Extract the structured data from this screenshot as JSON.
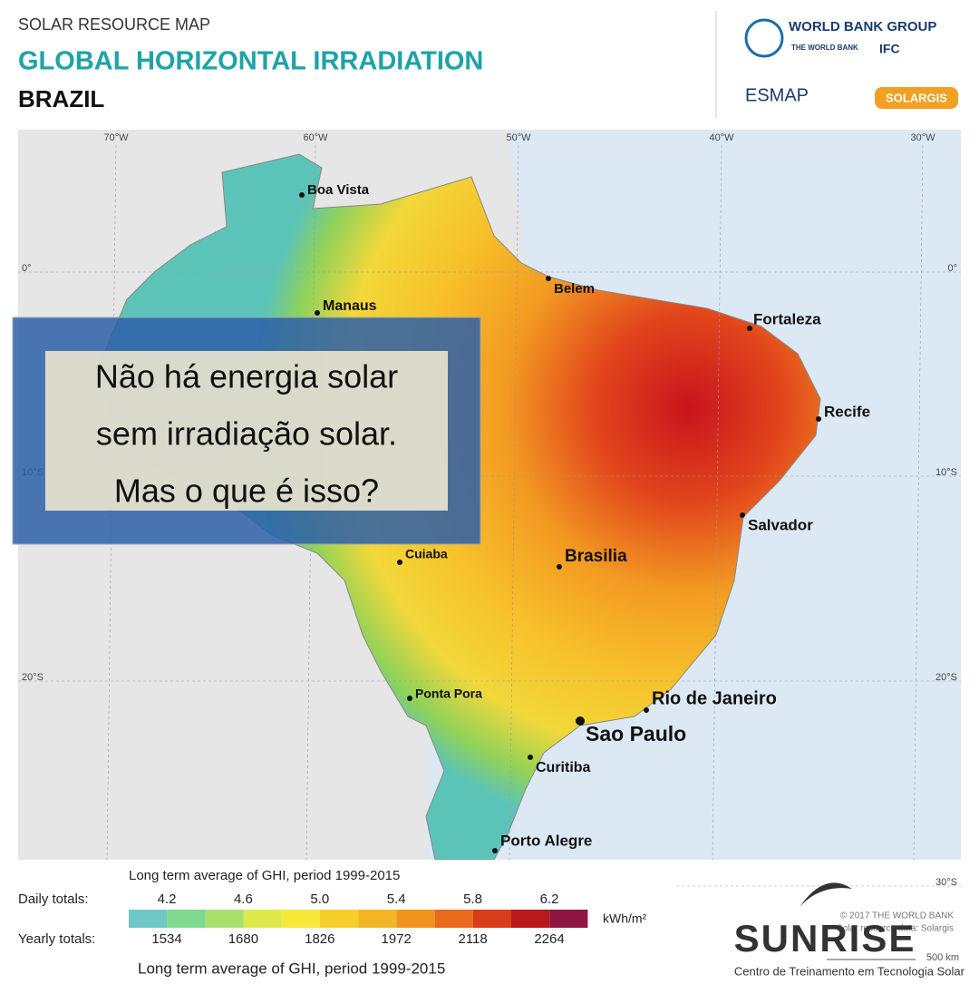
{
  "header": {
    "subtitle": "SOLAR RESOURCE MAP",
    "title": "GLOBAL HORIZONTAL IRRADIATION",
    "country": "BRAZIL"
  },
  "logos": {
    "wbg": "WORLD BANK GROUP",
    "wb": "THE WORLD BANK",
    "ifc": "IFC",
    "esmap": "ESMAP",
    "solargis": "SOLARGIS"
  },
  "map": {
    "longitudes": [
      "70°W",
      "60°W",
      "50°W",
      "40°W",
      "30°W"
    ],
    "latitudes": [
      "0°",
      "10°S",
      "20°S",
      "30°S"
    ],
    "cities": [
      "Boa Vista",
      "Manaus",
      "Belem",
      "Fortaleza",
      "Recife",
      "Salvador",
      "Brasilia",
      "Cuiaba",
      "Ponta Pora",
      "Rio de Janeiro",
      "Sao Paulo",
      "Curitiba",
      "Porto Alegre"
    ]
  },
  "overlay": {
    "lines": [
      "Não há energia solar",
      "sem irradiação solar.",
      "Mas o que é isso?"
    ]
  },
  "legend": {
    "caption": "Long term average of GHI, period 1999-2015",
    "daily_label": "Daily totals:",
    "daily": [
      "4.2",
      "4.6",
      "5.0",
      "5.4",
      "5.8",
      "6.2"
    ],
    "yearly_label": "Yearly totals:",
    "yearly": [
      "1534",
      "1680",
      "1826",
      "1972",
      "2118",
      "2264"
    ],
    "unit": "kWh/m²",
    "caption_bottom": "Long term average of GHI, period 1999-2015"
  },
  "credits": {
    "copyright": "© 2017 THE WORLD BANK",
    "source": "Solar resource data: Solargis",
    "scale": "500 km"
  },
  "brand": {
    "name": "SUNRISE",
    "tagline": "Centro de Treinamento em Tecnologia Solar"
  }
}
